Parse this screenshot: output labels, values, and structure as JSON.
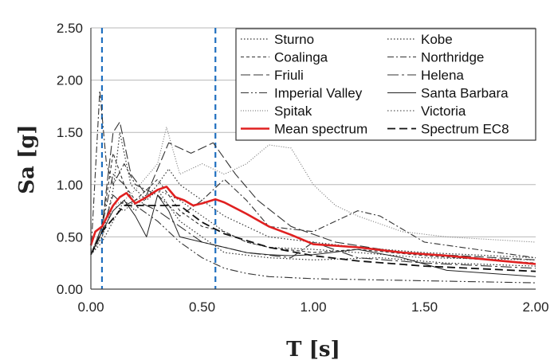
{
  "chart_data": {
    "type": "line",
    "xlabel": "T [s]",
    "ylabel": "Sa [g]",
    "xlim": [
      0,
      2
    ],
    "ylim": [
      0,
      2.5
    ],
    "x_ticks": [
      "0.00",
      "0.50",
      "1.00",
      "1.50",
      "2.00"
    ],
    "y_ticks": [
      "0.00",
      "0.50",
      "1.00",
      "1.50",
      "2.00",
      "2.50"
    ],
    "grid": "horizontal",
    "legend_position": "top-right",
    "vertical_markers": [
      {
        "x": 0.05,
        "color": "#1f6fbf",
        "style": "dashed"
      },
      {
        "x": 0.56,
        "color": "#1f6fbf",
        "style": "dashed"
      }
    ],
    "series": [
      {
        "name": "Sturno",
        "dash": "1.5,2.5",
        "color": "#333333",
        "width": 1.2,
        "points": [
          [
            0,
            0.33
          ],
          [
            0.05,
            0.45
          ],
          [
            0.1,
            0.65
          ],
          [
            0.15,
            0.85
          ],
          [
            0.2,
            0.75
          ],
          [
            0.3,
            1.0
          ],
          [
            0.35,
            1.15
          ],
          [
            0.4,
            1.0
          ],
          [
            0.5,
            0.85
          ],
          [
            0.6,
            0.7
          ],
          [
            0.7,
            0.6
          ],
          [
            0.8,
            0.5
          ],
          [
            1.0,
            0.45
          ],
          [
            1.2,
            0.4
          ],
          [
            1.5,
            0.35
          ],
          [
            2.0,
            0.3
          ]
        ]
      },
      {
        "name": "Kobe",
        "dash": "1.5,2.5",
        "color": "#333333",
        "width": 1.2,
        "points": [
          [
            0,
            0.33
          ],
          [
            0.05,
            0.5
          ],
          [
            0.1,
            0.95
          ],
          [
            0.13,
            1.5
          ],
          [
            0.18,
            1.0
          ],
          [
            0.25,
            0.85
          ],
          [
            0.3,
            0.95
          ],
          [
            0.4,
            0.65
          ],
          [
            0.5,
            0.5
          ],
          [
            0.6,
            0.35
          ],
          [
            0.8,
            0.3
          ],
          [
            1.0,
            0.28
          ],
          [
            1.3,
            0.3
          ],
          [
            1.6,
            0.25
          ],
          [
            2.0,
            0.22
          ]
        ]
      },
      {
        "name": "Coalinga",
        "dash": "4,3",
        "color": "#333333",
        "width": 1.1,
        "points": [
          [
            0,
            0.33
          ],
          [
            0.05,
            0.6
          ],
          [
            0.1,
            1.3
          ],
          [
            0.15,
            1.0
          ],
          [
            0.2,
            0.85
          ],
          [
            0.3,
            1.05
          ],
          [
            0.4,
            0.75
          ],
          [
            0.5,
            0.6
          ],
          [
            0.6,
            0.55
          ],
          [
            0.7,
            0.45
          ],
          [
            0.8,
            0.4
          ],
          [
            1.0,
            0.35
          ],
          [
            1.2,
            0.38
          ],
          [
            1.5,
            0.32
          ],
          [
            2.0,
            0.25
          ]
        ]
      },
      {
        "name": "Northridge",
        "dash": "8,3,2,3",
        "color": "#333333",
        "width": 1.1,
        "points": [
          [
            0,
            0.33
          ],
          [
            0.04,
            1.9
          ],
          [
            0.07,
            1.2
          ],
          [
            0.1,
            1.0
          ],
          [
            0.15,
            1.2
          ],
          [
            0.2,
            1.0
          ],
          [
            0.3,
            0.9
          ],
          [
            0.4,
            0.7
          ],
          [
            0.5,
            0.85
          ],
          [
            0.6,
            1.05
          ],
          [
            0.7,
            0.85
          ],
          [
            0.8,
            0.6
          ],
          [
            1.0,
            0.55
          ],
          [
            1.2,
            0.75
          ],
          [
            1.3,
            0.7
          ],
          [
            1.5,
            0.45
          ],
          [
            2.0,
            0.3
          ]
        ]
      },
      {
        "name": "Friuli",
        "dash": "12,4",
        "color": "#333333",
        "width": 1.1,
        "points": [
          [
            0,
            0.33
          ],
          [
            0.05,
            0.6
          ],
          [
            0.1,
            1.5
          ],
          [
            0.13,
            1.6
          ],
          [
            0.18,
            1.1
          ],
          [
            0.25,
            0.9
          ],
          [
            0.35,
            1.4
          ],
          [
            0.45,
            1.3
          ],
          [
            0.55,
            1.4
          ],
          [
            0.65,
            1.1
          ],
          [
            0.75,
            0.85
          ],
          [
            0.9,
            0.6
          ],
          [
            1.1,
            0.45
          ],
          [
            1.4,
            0.35
          ],
          [
            2.0,
            0.28
          ]
        ]
      },
      {
        "name": "Helena",
        "dash": "14,4,3,4",
        "color": "#333333",
        "width": 1.1,
        "points": [
          [
            0,
            0.33
          ],
          [
            0.05,
            0.55
          ],
          [
            0.1,
            0.9
          ],
          [
            0.15,
            0.8
          ],
          [
            0.2,
            0.85
          ],
          [
            0.3,
            0.75
          ],
          [
            0.4,
            0.6
          ],
          [
            0.5,
            0.45
          ],
          [
            0.6,
            0.4
          ],
          [
            0.7,
            0.35
          ],
          [
            0.9,
            0.3
          ],
          [
            1.0,
            0.45
          ],
          [
            1.2,
            0.3
          ],
          [
            1.5,
            0.25
          ],
          [
            2.0,
            0.2
          ]
        ]
      },
      {
        "name": "Imperial Valley",
        "dash": "10,3,2,3,2,3",
        "color": "#333333",
        "width": 1.1,
        "points": [
          [
            0,
            0.33
          ],
          [
            0.05,
            0.6
          ],
          [
            0.1,
            1.1
          ],
          [
            0.15,
            1.0
          ],
          [
            0.2,
            0.8
          ],
          [
            0.3,
            0.65
          ],
          [
            0.4,
            0.45
          ],
          [
            0.5,
            0.3
          ],
          [
            0.6,
            0.2
          ],
          [
            0.7,
            0.15
          ],
          [
            0.8,
            0.12
          ],
          [
            1.0,
            0.1
          ],
          [
            1.5,
            0.08
          ],
          [
            2.0,
            0.06
          ]
        ]
      },
      {
        "name": "Santa Barbara",
        "dash": "",
        "color": "#222222",
        "width": 1.0,
        "points": [
          [
            0,
            0.33
          ],
          [
            0.05,
            0.55
          ],
          [
            0.1,
            0.75
          ],
          [
            0.15,
            0.85
          ],
          [
            0.2,
            0.7
          ],
          [
            0.25,
            0.5
          ],
          [
            0.3,
            0.9
          ],
          [
            0.35,
            0.75
          ],
          [
            0.4,
            0.5
          ],
          [
            0.5,
            0.45
          ],
          [
            0.6,
            0.4
          ],
          [
            0.7,
            0.35
          ],
          [
            0.8,
            0.33
          ],
          [
            0.9,
            0.32
          ],
          [
            1.0,
            0.33
          ],
          [
            1.2,
            0.38
          ],
          [
            1.4,
            0.3
          ],
          [
            1.6,
            0.18
          ],
          [
            2.0,
            0.12
          ]
        ]
      },
      {
        "name": "Spitak",
        "dash": "1,2",
        "color": "#666666",
        "width": 1.0,
        "points": [
          [
            0,
            0.33
          ],
          [
            0.05,
            0.5
          ],
          [
            0.1,
            0.8
          ],
          [
            0.15,
            0.85
          ],
          [
            0.2,
            0.95
          ],
          [
            0.3,
            1.2
          ],
          [
            0.34,
            1.55
          ],
          [
            0.4,
            1.1
          ],
          [
            0.5,
            1.2
          ],
          [
            0.6,
            1.1
          ],
          [
            0.7,
            1.2
          ],
          [
            0.8,
            1.38
          ],
          [
            0.9,
            1.35
          ],
          [
            1.0,
            1.0
          ],
          [
            1.1,
            0.8
          ],
          [
            1.2,
            0.7
          ],
          [
            1.4,
            0.55
          ],
          [
            1.6,
            0.5
          ],
          [
            2.0,
            0.45
          ]
        ]
      },
      {
        "name": "Victoria",
        "dash": "1.5,2.5",
        "color": "#333333",
        "width": 1.1,
        "points": [
          [
            0,
            0.33
          ],
          [
            0.05,
            0.5
          ],
          [
            0.1,
            0.8
          ],
          [
            0.15,
            0.75
          ],
          [
            0.2,
            0.85
          ],
          [
            0.3,
            0.95
          ],
          [
            0.4,
            0.85
          ],
          [
            0.5,
            0.7
          ],
          [
            0.6,
            0.55
          ],
          [
            0.7,
            0.45
          ],
          [
            0.8,
            0.4
          ],
          [
            1.0,
            0.38
          ],
          [
            1.2,
            0.35
          ],
          [
            1.5,
            0.3
          ],
          [
            2.0,
            0.28
          ]
        ]
      },
      {
        "name": "Mean spectrum",
        "dash": "",
        "color": "#e02020",
        "width": 2.6,
        "points": [
          [
            0,
            0.42
          ],
          [
            0.02,
            0.55
          ],
          [
            0.05,
            0.6
          ],
          [
            0.08,
            0.72
          ],
          [
            0.1,
            0.8
          ],
          [
            0.13,
            0.88
          ],
          [
            0.16,
            0.92
          ],
          [
            0.2,
            0.82
          ],
          [
            0.25,
            0.88
          ],
          [
            0.3,
            0.95
          ],
          [
            0.34,
            0.98
          ],
          [
            0.38,
            0.88
          ],
          [
            0.42,
            0.85
          ],
          [
            0.46,
            0.8
          ],
          [
            0.5,
            0.82
          ],
          [
            0.56,
            0.86
          ],
          [
            0.6,
            0.83
          ],
          [
            0.7,
            0.72
          ],
          [
            0.8,
            0.6
          ],
          [
            0.9,
            0.52
          ],
          [
            1.0,
            0.43
          ],
          [
            1.2,
            0.4
          ],
          [
            1.4,
            0.35
          ],
          [
            1.6,
            0.32
          ],
          [
            1.8,
            0.28
          ],
          [
            2.0,
            0.24
          ]
        ]
      },
      {
        "name": "Spectrum EC8",
        "dash": "10,5",
        "color": "#111111",
        "width": 1.8,
        "points": [
          [
            0,
            0.33
          ],
          [
            0.05,
            0.55
          ],
          [
            0.15,
            0.8
          ],
          [
            0.4,
            0.8
          ],
          [
            0.5,
            0.64
          ],
          [
            0.6,
            0.53
          ],
          [
            0.8,
            0.4
          ],
          [
            1.0,
            0.32
          ],
          [
            1.2,
            0.27
          ],
          [
            1.5,
            0.22
          ],
          [
            2.0,
            0.17
          ]
        ]
      }
    ],
    "legend_order": [
      "Sturno",
      "Kobe",
      "Coalinga",
      "Northridge",
      "Friuli",
      "Helena",
      "Imperial Valley",
      "Santa Barbara",
      "Spitak",
      "Victoria",
      "Mean spectrum",
      "Spectrum EC8"
    ]
  }
}
